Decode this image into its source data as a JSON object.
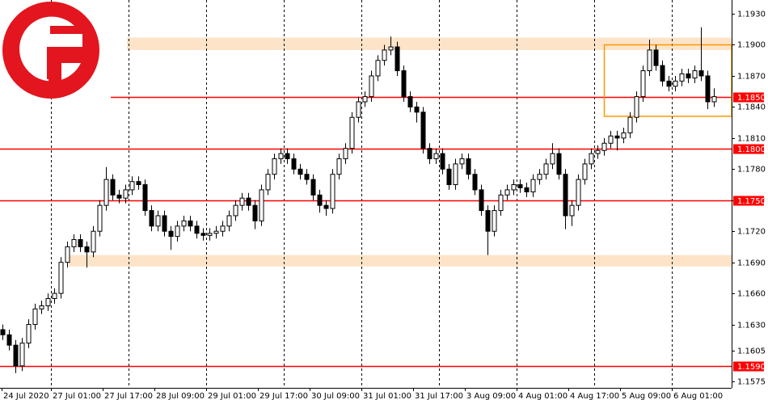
{
  "chart_data": {
    "type": "candlestick",
    "xlabels": [
      "24 Jul 2020",
      "27 Jul 01:00",
      "27 Jul 17:00",
      "28 Jul 09:00",
      "29 Jul 01:00",
      "29 Jul 17:00",
      "30 Jul 09:00",
      "31 Jul 01:00",
      "31 Jul 17:00",
      "3 Aug 09:00",
      "4 Aug 01:00",
      "4 Aug 17:00",
      "5 Aug 09:00",
      "6 Aug 01:00"
    ],
    "open": [
      1.1625,
      1.162,
      1.161,
      1.159,
      1.1612,
      1.163,
      1.1645,
      1.1648,
      1.1655,
      1.166,
      1.169,
      1.1705,
      1.1712,
      1.1705,
      1.17,
      1.172,
      1.1745,
      1.177,
      1.1755,
      1.1752,
      1.176,
      1.1768,
      1.1765,
      1.174,
      1.1725,
      1.1735,
      1.172,
      1.1715,
      1.1725,
      1.173,
      1.1725,
      1.1718,
      1.1716,
      1.1718,
      1.172,
      1.1725,
      1.1735,
      1.1745,
      1.1752,
      1.1745,
      1.173,
      1.176,
      1.1775,
      1.179,
      1.1795,
      1.179,
      1.178,
      1.1775,
      1.177,
      1.1755,
      1.1745,
      1.1742,
      1.1775,
      1.179,
      1.18,
      1.183,
      1.1845,
      1.185,
      1.187,
      1.1885,
      1.1895,
      1.1898,
      1.1875,
      1.185,
      1.184,
      1.1835,
      1.18,
      1.179,
      1.1795,
      1.178,
      1.1765,
      1.1785,
      1.179,
      1.1775,
      1.176,
      1.174,
      1.172,
      1.174,
      1.1755,
      1.176,
      1.1765,
      1.1762,
      1.1758,
      1.177,
      1.1775,
      1.1785,
      1.1795,
      1.1775,
      1.1735,
      1.1745,
      1.177,
      1.1785,
      1.1795,
      1.1798,
      1.1805,
      1.1812,
      1.181,
      1.1815,
      1.183,
      1.185,
      1.1875,
      1.1895,
      1.188,
      1.1865,
      1.186,
      1.1865,
      1.1872,
      1.1868,
      1.1875,
      1.187,
      1.1845
    ],
    "high": [
      1.163,
      1.1625,
      1.1615,
      1.1617,
      1.1635,
      1.165,
      1.1653,
      1.166,
      1.1665,
      1.1695,
      1.171,
      1.1717,
      1.1717,
      1.171,
      1.1725,
      1.175,
      1.1782,
      1.1775,
      1.176,
      1.1765,
      1.1773,
      1.1773,
      1.177,
      1.1745,
      1.174,
      1.174,
      1.1725,
      1.173,
      1.1735,
      1.1735,
      1.173,
      1.1723,
      1.1723,
      1.1725,
      1.173,
      1.174,
      1.175,
      1.1757,
      1.1757,
      1.175,
      1.1765,
      1.178,
      1.1795,
      1.18,
      1.18,
      1.1795,
      1.1785,
      1.178,
      1.1775,
      1.176,
      1.175,
      1.178,
      1.1795,
      1.1805,
      1.1835,
      1.185,
      1.1855,
      1.1875,
      1.189,
      1.19,
      1.1908,
      1.1903,
      1.188,
      1.1855,
      1.1845,
      1.184,
      1.1805,
      1.18,
      1.18,
      1.1785,
      1.179,
      1.1795,
      1.1795,
      1.178,
      1.1765,
      1.1745,
      1.1745,
      1.176,
      1.1765,
      1.177,
      1.177,
      1.1767,
      1.1775,
      1.178,
      1.179,
      1.1805,
      1.18,
      1.178,
      1.175,
      1.1775,
      1.179,
      1.18,
      1.1803,
      1.181,
      1.1817,
      1.1817,
      1.182,
      1.1835,
      1.1855,
      1.188,
      1.1905,
      1.19,
      1.1885,
      1.187,
      1.187,
      1.1877,
      1.1877,
      1.188,
      1.1917,
      1.1875,
      1.1858
    ],
    "low": [
      1.1615,
      1.1605,
      1.1583,
      1.1585,
      1.1607,
      1.1625,
      1.164,
      1.1643,
      1.165,
      1.1655,
      1.1685,
      1.17,
      1.17,
      1.1685,
      1.1695,
      1.1715,
      1.174,
      1.175,
      1.1747,
      1.1747,
      1.1755,
      1.176,
      1.1735,
      1.172,
      1.172,
      1.1715,
      1.1702,
      1.171,
      1.172,
      1.172,
      1.1713,
      1.1711,
      1.1711,
      1.1713,
      1.1715,
      1.172,
      1.173,
      1.174,
      1.174,
      1.1722,
      1.1725,
      1.1755,
      1.177,
      1.1785,
      1.1785,
      1.1775,
      1.177,
      1.1765,
      1.175,
      1.1738,
      1.1735,
      1.1737,
      1.177,
      1.1785,
      1.1795,
      1.1825,
      1.184,
      1.1845,
      1.1865,
      1.188,
      1.189,
      1.187,
      1.1845,
      1.1835,
      1.1825,
      1.1795,
      1.1785,
      1.1785,
      1.1775,
      1.176,
      1.176,
      1.178,
      1.177,
      1.1755,
      1.1735,
      1.1697,
      1.1715,
      1.1735,
      1.175,
      1.1755,
      1.1757,
      1.1753,
      1.1753,
      1.1765,
      1.177,
      1.178,
      1.177,
      1.1722,
      1.1725,
      1.174,
      1.1765,
      1.178,
      1.179,
      1.1793,
      1.18,
      1.1798,
      1.1805,
      1.181,
      1.1825,
      1.1845,
      1.187,
      1.1875,
      1.186,
      1.1855,
      1.1855,
      1.186,
      1.1863,
      1.1863,
      1.1865,
      1.1838,
      1.184
    ],
    "close": [
      1.162,
      1.161,
      1.159,
      1.1612,
      1.163,
      1.1645,
      1.1648,
      1.1655,
      1.166,
      1.169,
      1.1705,
      1.1712,
      1.1705,
      1.17,
      1.172,
      1.1745,
      1.177,
      1.1755,
      1.1752,
      1.176,
      1.1768,
      1.1765,
      1.174,
      1.1725,
      1.1735,
      1.172,
      1.1715,
      1.1725,
      1.173,
      1.1725,
      1.1718,
      1.1716,
      1.1718,
      1.172,
      1.1725,
      1.1735,
      1.1745,
      1.1752,
      1.1745,
      1.173,
      1.176,
      1.1775,
      1.179,
      1.1795,
      1.179,
      1.178,
      1.1775,
      1.177,
      1.1755,
      1.1745,
      1.1742,
      1.1775,
      1.179,
      1.18,
      1.183,
      1.1845,
      1.185,
      1.187,
      1.1885,
      1.1895,
      1.1898,
      1.1875,
      1.185,
      1.184,
      1.1835,
      1.18,
      1.179,
      1.1795,
      1.178,
      1.1765,
      1.1785,
      1.179,
      1.1775,
      1.176,
      1.174,
      1.172,
      1.174,
      1.1755,
      1.176,
      1.1765,
      1.1762,
      1.1758,
      1.177,
      1.1775,
      1.1785,
      1.1795,
      1.1775,
      1.1735,
      1.1745,
      1.177,
      1.1785,
      1.1795,
      1.1798,
      1.1805,
      1.1812,
      1.181,
      1.1815,
      1.183,
      1.185,
      1.1875,
      1.1895,
      1.188,
      1.1865,
      1.186,
      1.1865,
      1.1872,
      1.1868,
      1.1875,
      1.187,
      1.1845,
      1.185
    ],
    "ylim": [
      1.15688,
      1.19433
    ],
    "yticks": [
      {
        "value": 1.193,
        "label": "1.1930"
      },
      {
        "value": 1.19,
        "label": "1.1900"
      },
      {
        "value": 1.187,
        "label": "1.1870"
      },
      {
        "value": 1.184,
        "label": "1.1840"
      },
      {
        "value": 1.181,
        "label": "1.1810"
      },
      {
        "value": 1.178,
        "label": "1.1780"
      },
      {
        "value": 1.175,
        "label": "1.1750"
      },
      {
        "value": 1.172,
        "label": "1.1720"
      },
      {
        "value": 1.169,
        "label": "1.1690"
      },
      {
        "value": 1.166,
        "label": "1.1660"
      },
      {
        "value": 1.163,
        "label": "1.1630"
      },
      {
        "value": 1.1605,
        "label": "1.1605"
      },
      {
        "value": 1.1575,
        "label": "1.1575"
      }
    ],
    "levels": [
      {
        "value": 1.185,
        "label": "1.1850"
      },
      {
        "value": 1.18,
        "label": "1.1800"
      },
      {
        "value": 1.175,
        "label": "1.1750"
      },
      {
        "value": 1.159,
        "label": "1.1590"
      }
    ],
    "level_color": "#ff0000",
    "zones": [
      {
        "low": 1.1895,
        "high": 1.1907
      },
      {
        "low": 1.1686,
        "high": 1.1697
      }
    ],
    "zone_color": "#fde3c8",
    "box": {
      "low": 1.1831,
      "high": 1.19
    },
    "box_color": "#ff9900",
    "bull_color": "#ffffff",
    "bear_color": "#000000",
    "grid": true
  }
}
